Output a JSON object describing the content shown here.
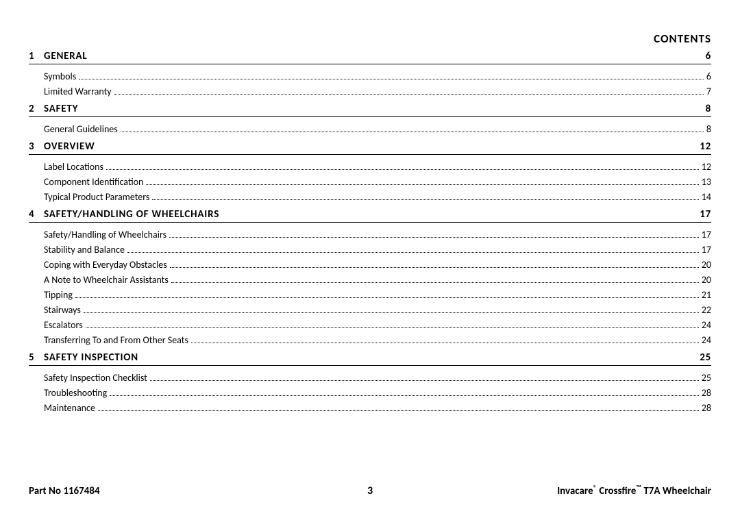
{
  "header": {
    "title": "CONTENTS"
  },
  "sections": [
    {
      "num": "1",
      "title": "General",
      "page": "6",
      "items": [
        {
          "title": "Symbols",
          "page": "6"
        },
        {
          "title": "Limited Warranty",
          "page": "7"
        }
      ]
    },
    {
      "num": "2",
      "title": "Safety",
      "page": "8",
      "items": [
        {
          "title": "General Guidelines",
          "page": "8"
        }
      ]
    },
    {
      "num": "3",
      "title": "Overview",
      "page": "12",
      "items": [
        {
          "title": "Label Locations",
          "page": "12"
        },
        {
          "title": "Component Identification",
          "page": "13"
        },
        {
          "title": "Typical Product Parameters",
          "page": "14"
        }
      ]
    },
    {
      "num": "4",
      "title": "Safety/Handling of Wheelchairs",
      "page": "17",
      "items": [
        {
          "title": "Safety/Handling of Wheelchairs",
          "page": "17"
        },
        {
          "title": "Stability and Balance",
          "page": "17"
        },
        {
          "title": "Coping with Everyday Obstacles",
          "page": "20"
        },
        {
          "title": "A Note to Wheelchair Assistants",
          "page": "20"
        },
        {
          "title": "Tipping",
          "page": "21"
        },
        {
          "title": "Stairways",
          "page": "22"
        },
        {
          "title": "Escalators",
          "page": "24"
        },
        {
          "title": "Transferring To and From Other Seats",
          "page": "24"
        }
      ]
    },
    {
      "num": "5",
      "title": "Safety Inspection",
      "page": "25",
      "items": [
        {
          "title": "Safety Inspection Checklist",
          "page": "25"
        },
        {
          "title": "Troubleshooting",
          "page": "28"
        },
        {
          "title": "Maintenance",
          "page": "28"
        }
      ]
    }
  ],
  "footer": {
    "part_no_label": "Part No 1167484",
    "page_number": "3",
    "product": "Invacare® Crossfire™ T7A Wheelchair"
  },
  "style": {
    "background_color": "#ffffff",
    "text_color": "#000000",
    "rule_color": "#000000",
    "dot_color": "#000000",
    "header_fontsize": 17,
    "section_fontsize": 15,
    "item_fontsize": 14,
    "footer_fontsize": 15
  }
}
